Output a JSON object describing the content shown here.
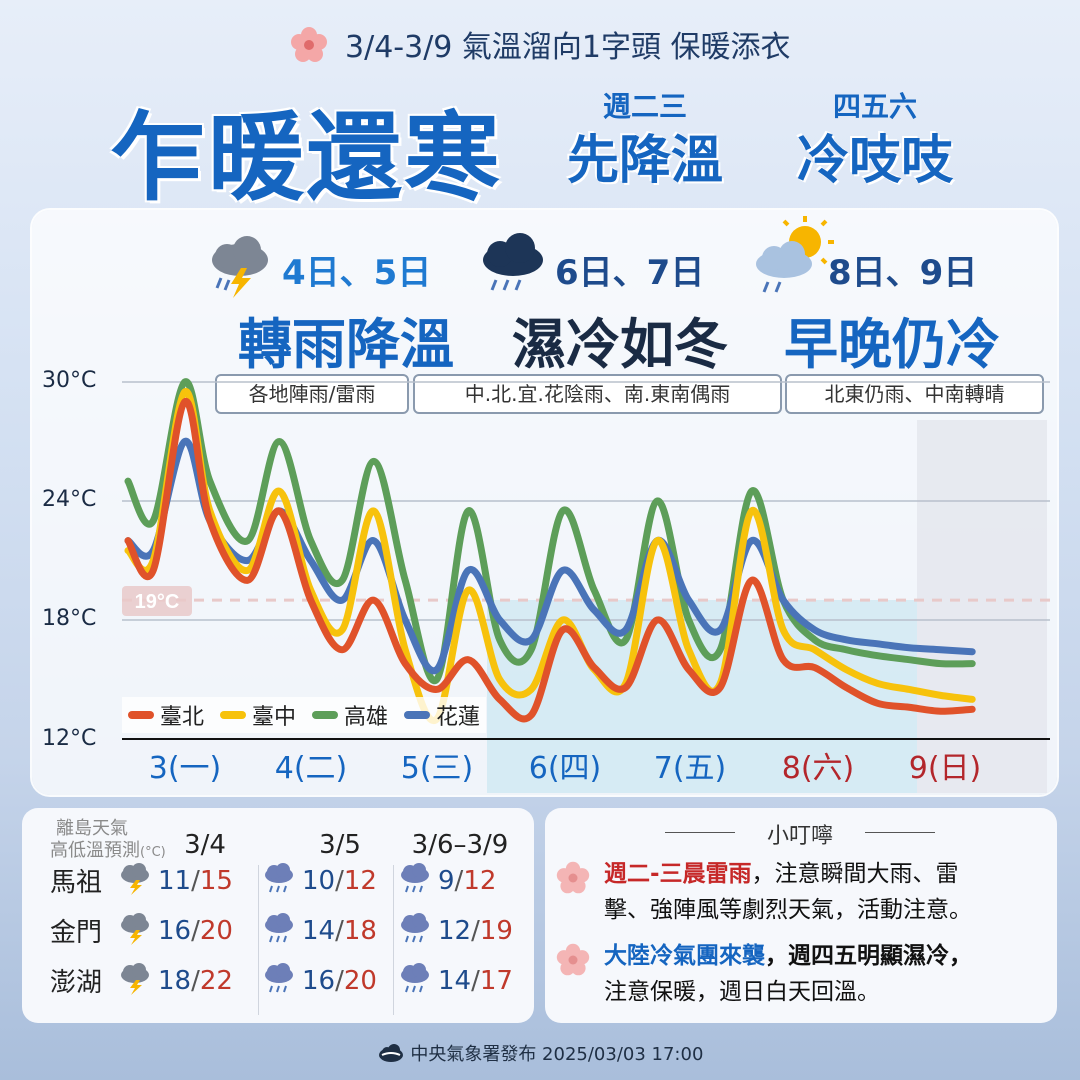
{
  "header": {
    "subtitle": "3/4-3/9 氣溫溜向1字頭 保暖添衣",
    "title": "乍暖還寒",
    "part1_small": "週二三",
    "part1_big": "先降溫",
    "part2_small": "四五六",
    "part2_big": "冷吱吱"
  },
  "phases": [
    {
      "dates": "4日、5日",
      "title": "轉雨降溫",
      "desc": "各地陣雨/雷雨",
      "icon": "thunderstorm-icon"
    },
    {
      "dates": "6日、7日",
      "title": "濕冷如冬",
      "desc": "中.北.宜.花陰雨、南.東南偶雨",
      "icon": "rain-cloud-icon"
    },
    {
      "dates": "8日、9日",
      "title": "早晚仍冷",
      "desc": "北東仍雨、中南轉晴",
      "icon": "partly-sunny-rain-icon"
    }
  ],
  "colors": {
    "taipei": "#e0522a",
    "taichung": "#f7c20c",
    "kaohsiung": "#5d9e59",
    "hualien": "#4a74b8",
    "title_blue": "#1565c0",
    "weekend_red": "#b3262b"
  },
  "chart_data": {
    "type": "line",
    "ylim": [
      12,
      30
    ],
    "yticks": [
      "30°C",
      "24°C",
      "18°C",
      "12°C"
    ],
    "reference_label": "19°C",
    "reference_value": 19,
    "days": [
      "3(一)",
      "4(二)",
      "5(三)",
      "6(四)",
      "7(五)",
      "8(六)",
      "9(日)"
    ],
    "weekend_days": [
      5,
      6
    ],
    "series": [
      {
        "name": "臺北",
        "color": "#e0522a",
        "x": [
          0.0,
          0.2,
          0.45,
          0.65,
          0.95,
          1.2,
          1.45,
          1.7,
          1.95,
          2.2,
          2.45,
          2.7,
          2.95,
          3.2,
          3.45,
          3.7,
          3.95,
          4.2,
          4.45,
          4.7,
          4.95,
          5.2,
          5.45,
          5.7,
          5.95,
          6.2,
          6.45,
          6.7
        ],
        "y": [
          22,
          20.5,
          29,
          23,
          20,
          23.5,
          19,
          16.5,
          19,
          15.8,
          14.5,
          16,
          14,
          13.2,
          17.5,
          15.6,
          14.6,
          18,
          15.5,
          14.6,
          20,
          16,
          15.6,
          14.6,
          13.8,
          13.6,
          13.4,
          13.5
        ]
      },
      {
        "name": "臺中",
        "color": "#f7c20c",
        "x": [
          0.0,
          0.2,
          0.45,
          0.65,
          0.95,
          1.2,
          1.45,
          1.7,
          1.95,
          2.2,
          2.45,
          2.7,
          2.95,
          3.2,
          3.45,
          3.7,
          3.95,
          4.2,
          4.45,
          4.7,
          4.95,
          5.2,
          5.45,
          5.7,
          5.95,
          6.2,
          6.45,
          6.7
        ],
        "y": [
          21.5,
          21,
          29.5,
          23.5,
          20.5,
          24.5,
          19.5,
          17.5,
          23.5,
          16.5,
          13,
          19.5,
          15,
          14.5,
          18,
          15.5,
          14.8,
          22,
          16.5,
          14.8,
          23.5,
          17.5,
          16.5,
          15.5,
          14.8,
          14.5,
          14.2,
          14
        ]
      },
      {
        "name": "高雄",
        "color": "#5d9e59",
        "x": [
          0.0,
          0.2,
          0.45,
          0.65,
          0.95,
          1.2,
          1.45,
          1.7,
          1.95,
          2.2,
          2.45,
          2.7,
          2.95,
          3.2,
          3.45,
          3.7,
          3.95,
          4.2,
          4.45,
          4.7,
          4.95,
          5.2,
          5.45,
          5.7,
          5.95,
          6.2,
          6.45,
          6.7
        ],
        "y": [
          25,
          23,
          30,
          25,
          22,
          27,
          22,
          20,
          26,
          20,
          15,
          23.5,
          17,
          16.5,
          23.5,
          19.5,
          17,
          24,
          18,
          16.5,
          24.5,
          19,
          17,
          16.5,
          16.2,
          16,
          15.8,
          15.8
        ]
      },
      {
        "name": "花蓮",
        "color": "#4a74b8",
        "x": [
          0.0,
          0.2,
          0.45,
          0.65,
          0.95,
          1.2,
          1.45,
          1.7,
          1.95,
          2.2,
          2.45,
          2.7,
          2.95,
          3.2,
          3.45,
          3.7,
          3.95,
          4.2,
          4.45,
          4.7,
          4.95,
          5.2,
          5.45,
          5.7,
          5.95,
          6.2,
          6.45,
          6.7
        ],
        "y": [
          22,
          21.5,
          27,
          23,
          21,
          23.5,
          21,
          19,
          22,
          18,
          15.5,
          20.5,
          18,
          17,
          20.5,
          18.5,
          17.5,
          22,
          19,
          17.5,
          22,
          19,
          17.5,
          17,
          16.8,
          16.6,
          16.5,
          16.4
        ]
      }
    ]
  },
  "legend": [
    "臺北",
    "臺中",
    "高雄",
    "花蓮"
  ],
  "islands": {
    "header_line1": "離島天氣",
    "header_line2": "高低溫預測",
    "header_unit": "(°C)",
    "columns": [
      "3/4",
      "3/5",
      "3/6–3/9"
    ],
    "rows": [
      {
        "name": "馬祖",
        "cells": [
          {
            "lo": "11",
            "hi": "15",
            "icon": "thunderstorm-icon"
          },
          {
            "lo": "10",
            "hi": "12",
            "icon": "rain-cloud-icon"
          },
          {
            "lo": "9",
            "hi": "12",
            "icon": "rain-cloud-icon"
          }
        ]
      },
      {
        "name": "金門",
        "cells": [
          {
            "lo": "16",
            "hi": "20",
            "icon": "thunderstorm-icon"
          },
          {
            "lo": "14",
            "hi": "18",
            "icon": "rain-cloud-icon"
          },
          {
            "lo": "12",
            "hi": "19",
            "icon": "rain-cloud-icon"
          }
        ]
      },
      {
        "name": "澎湖",
        "cells": [
          {
            "lo": "18",
            "hi": "22",
            "icon": "thunderstorm-icon"
          },
          {
            "lo": "16",
            "hi": "20",
            "icon": "rain-cloud-icon"
          },
          {
            "lo": "14",
            "hi": "17",
            "icon": "rain-cloud-icon"
          }
        ]
      }
    ]
  },
  "tips": {
    "title": "小叮嚀",
    "tip1_red": "週二-三晨雷雨",
    "tip1_rest_a": "，注意瞬間大雨、雷",
    "tip1_rest_b": "擊、強陣風等劇烈天氣，活動注意。",
    "tip2_blue": "大陸冷氣團來襲",
    "tip2_rest_a": "，週四五明顯濕冷，",
    "tip2_rest_b": "注意保暖，週日白天回溫。"
  },
  "footer": "中央氣象署發布 2025/03/03 17:00"
}
